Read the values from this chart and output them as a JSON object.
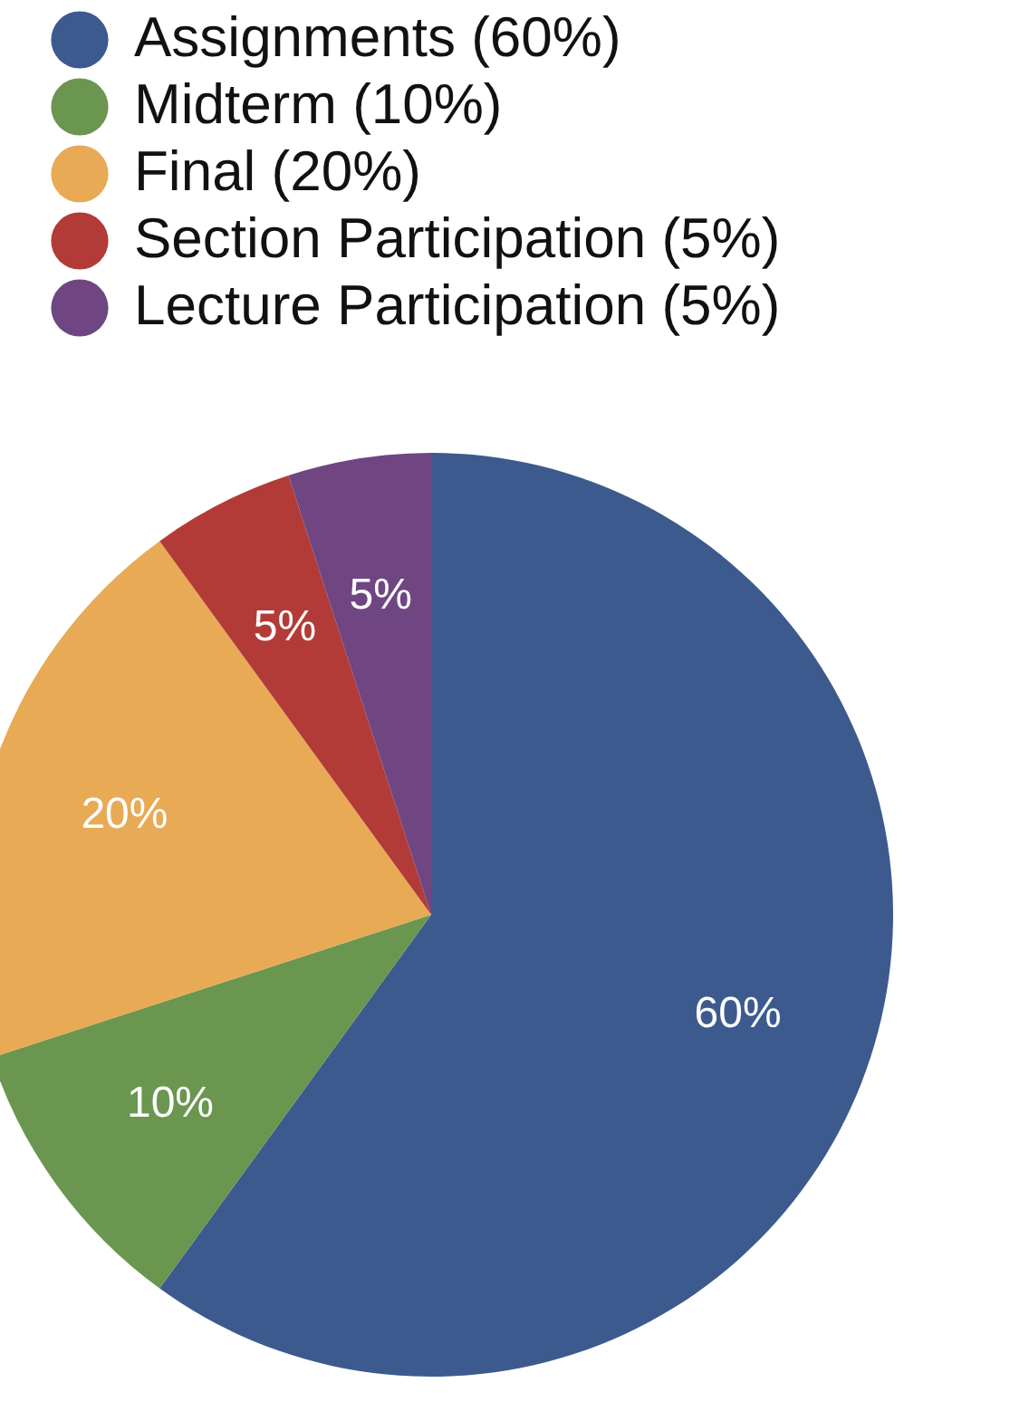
{
  "chart_data": {
    "type": "pie",
    "categories": [
      "Assignments (60%)",
      "Midterm (10%)",
      "Final (20%)",
      "Section Participation (5%)",
      "Lecture Participation (5%)"
    ],
    "values": [
      60,
      10,
      20,
      5,
      5
    ],
    "colors": [
      "#3d5a8f",
      "#6a9650",
      "#e8aa55",
      "#b33b37",
      "#6f4682"
    ],
    "value_labels": [
      "60%",
      "10%",
      "20%",
      "5%",
      "5%"
    ],
    "legend": "top"
  }
}
